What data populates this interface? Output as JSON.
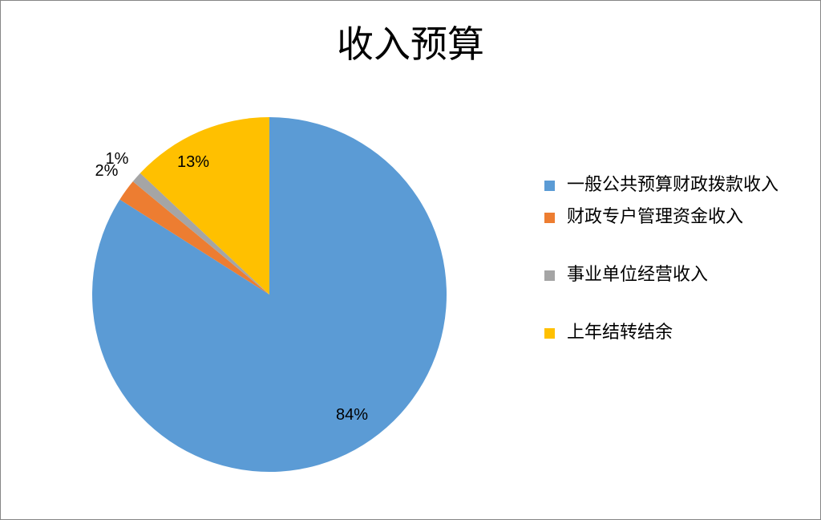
{
  "chart_data": {
    "type": "pie",
    "title": "收入预算",
    "categories": [
      "一般公共预算财政拨款收入",
      "财政专户管理资金收入",
      "事业单位经营收入",
      "上年结转结余"
    ],
    "values": [
      84,
      2,
      1,
      13
    ],
    "data_labels": [
      "84%",
      "2%",
      "1%",
      "13%"
    ],
    "colors": [
      "#5B9BD5",
      "#ED7D31",
      "#A5A5A5",
      "#FFC000"
    ],
    "legend_position": "right"
  }
}
